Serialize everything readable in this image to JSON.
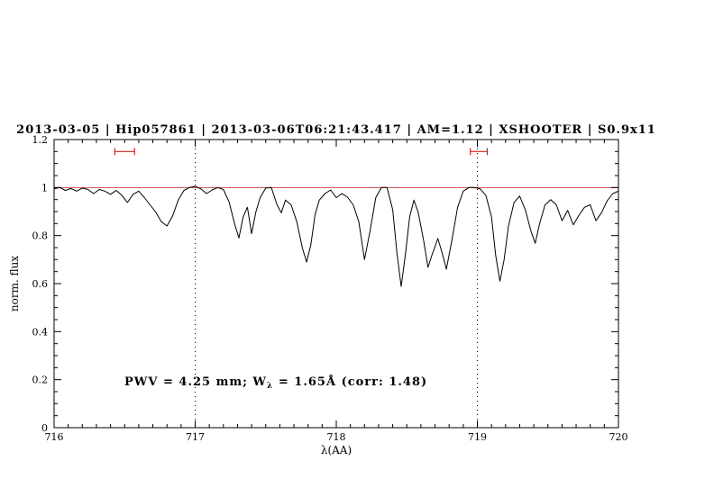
{
  "title": "2013-03-05 | Hip057861 | 2013-03-06T06:21:43.417 | AM=1.12 | XSHOOTER | S0.9x11",
  "header": {
    "date": "2013-03-05",
    "target": "Hip057861",
    "obs_time": "2013-03-06T06:21:43.417",
    "airmass": "AM=1.12",
    "instrument": "XSHOOTER",
    "slit": "S0.9x11"
  },
  "annotation": {
    "pre": "PWV = 4.25 mm; W",
    "sub": "λ",
    "post": " = 1.65Å (corr: 1.48)"
  },
  "measurements": {
    "pwv_mm": "4.25",
    "equivalent_width_angstrom": "1.65",
    "correction_factor": "1.48"
  },
  "colors": {
    "title": "#0000dd",
    "annotation": "#0000dd",
    "spectrum": "#000000",
    "reference_line": "#cc4444",
    "marker": "#cc2222",
    "dotted_line": "#000000",
    "frame": "#000000"
  },
  "chart_data": {
    "type": "line",
    "title": "2013-03-05 | Hip057861 | 2013-03-06T06:21:43.417 | AM=1.12 | XSHOOTER | S0.9x11",
    "xlabel": "λ(AA)",
    "ylabel": "norm. flux",
    "xlim": [
      716,
      720
    ],
    "ylim": [
      0,
      1.2
    ],
    "grid": false,
    "x_major_ticks": [
      716,
      717,
      718,
      719,
      720
    ],
    "x_tick_labels": [
      "716",
      "717",
      "718",
      "719",
      "720"
    ],
    "x_minor_step": 0.1,
    "y_major_ticks": [
      0,
      0.2,
      0.4,
      0.6,
      0.8,
      1,
      1.2
    ],
    "y_tick_labels": [
      "0",
      "0.2",
      "0.4",
      "0.6",
      "0.8",
      "1",
      "1.2"
    ],
    "y_minor_step": 0.05,
    "dotted_vlines": [
      717,
      719
    ],
    "reference_hline": 1.0,
    "range_markers": [
      {
        "x1": 716.43,
        "x2": 716.57,
        "y": 1.15
      },
      {
        "x1": 718.95,
        "x2": 719.07,
        "y": 1.15
      }
    ],
    "series": [
      {
        "name": "telluric-spectrum",
        "points": [
          [
            716.0,
            0.995
          ],
          [
            716.04,
            1.0
          ],
          [
            716.08,
            0.988
          ],
          [
            716.12,
            0.996
          ],
          [
            716.16,
            0.985
          ],
          [
            716.2,
            0.998
          ],
          [
            716.24,
            0.992
          ],
          [
            716.28,
            0.975
          ],
          [
            716.32,
            0.992
          ],
          [
            716.36,
            0.985
          ],
          [
            716.4,
            0.972
          ],
          [
            716.44,
            0.988
          ],
          [
            716.48,
            0.968
          ],
          [
            716.52,
            0.938
          ],
          [
            716.56,
            0.972
          ],
          [
            716.6,
            0.985
          ],
          [
            716.64,
            0.958
          ],
          [
            716.68,
            0.928
          ],
          [
            716.72,
            0.898
          ],
          [
            716.76,
            0.858
          ],
          [
            716.8,
            0.84
          ],
          [
            716.84,
            0.882
          ],
          [
            716.88,
            0.948
          ],
          [
            716.92,
            0.988
          ],
          [
            716.96,
            1.0
          ],
          [
            717.0,
            1.005
          ],
          [
            717.04,
            0.995
          ],
          [
            717.08,
            0.975
          ],
          [
            717.12,
            0.99
          ],
          [
            717.16,
            1.0
          ],
          [
            717.2,
            0.992
          ],
          [
            717.24,
            0.94
          ],
          [
            717.28,
            0.848
          ],
          [
            717.31,
            0.79
          ],
          [
            717.34,
            0.878
          ],
          [
            717.37,
            0.918
          ],
          [
            717.4,
            0.808
          ],
          [
            717.43,
            0.898
          ],
          [
            717.46,
            0.958
          ],
          [
            717.5,
            0.998
          ],
          [
            717.54,
            1.0
          ],
          [
            717.58,
            0.928
          ],
          [
            717.61,
            0.895
          ],
          [
            717.64,
            0.948
          ],
          [
            717.68,
            0.928
          ],
          [
            717.72,
            0.858
          ],
          [
            717.76,
            0.748
          ],
          [
            717.79,
            0.69
          ],
          [
            717.82,
            0.762
          ],
          [
            717.85,
            0.888
          ],
          [
            717.88,
            0.948
          ],
          [
            717.92,
            0.975
          ],
          [
            717.96,
            0.99
          ],
          [
            718.0,
            0.958
          ],
          [
            718.04,
            0.975
          ],
          [
            718.08,
            0.96
          ],
          [
            718.12,
            0.928
          ],
          [
            718.16,
            0.858
          ],
          [
            718.2,
            0.7
          ],
          [
            718.24,
            0.822
          ],
          [
            718.28,
            0.958
          ],
          [
            718.32,
            1.0
          ],
          [
            718.36,
            1.0
          ],
          [
            718.4,
            0.908
          ],
          [
            718.43,
            0.728
          ],
          [
            718.46,
            0.588
          ],
          [
            718.49,
            0.722
          ],
          [
            718.52,
            0.878
          ],
          [
            718.55,
            0.948
          ],
          [
            718.58,
            0.898
          ],
          [
            718.62,
            0.778
          ],
          [
            718.65,
            0.668
          ],
          [
            718.68,
            0.722
          ],
          [
            718.72,
            0.788
          ],
          [
            718.75,
            0.728
          ],
          [
            718.78,
            0.66
          ],
          [
            718.82,
            0.782
          ],
          [
            718.86,
            0.918
          ],
          [
            718.9,
            0.985
          ],
          [
            718.94,
            1.0
          ],
          [
            718.98,
            1.0
          ],
          [
            719.02,
            0.995
          ],
          [
            719.06,
            0.968
          ],
          [
            719.1,
            0.878
          ],
          [
            719.13,
            0.718
          ],
          [
            719.16,
            0.61
          ],
          [
            719.19,
            0.7
          ],
          [
            719.22,
            0.838
          ],
          [
            719.26,
            0.938
          ],
          [
            719.3,
            0.965
          ],
          [
            719.34,
            0.908
          ],
          [
            719.38,
            0.818
          ],
          [
            719.41,
            0.768
          ],
          [
            719.44,
            0.848
          ],
          [
            719.48,
            0.928
          ],
          [
            719.52,
            0.95
          ],
          [
            719.56,
            0.928
          ],
          [
            719.6,
            0.862
          ],
          [
            719.64,
            0.905
          ],
          [
            719.68,
            0.845
          ],
          [
            719.72,
            0.885
          ],
          [
            719.76,
            0.918
          ],
          [
            719.8,
            0.928
          ],
          [
            719.84,
            0.862
          ],
          [
            719.88,
            0.895
          ],
          [
            719.92,
            0.945
          ],
          [
            719.96,
            0.975
          ],
          [
            720.0,
            0.985
          ]
        ]
      }
    ]
  }
}
